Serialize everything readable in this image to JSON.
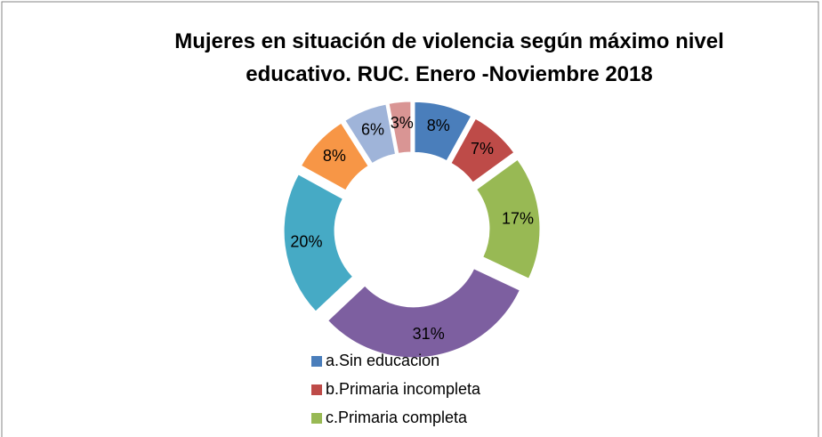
{
  "chart_data": {
    "type": "donut",
    "title": "Mujeres en situación de violencia según máximo nivel educativo. RUC. Enero -Noviembre  2018",
    "categories": [
      "a.Sin educacion",
      "b.Primaria incompleta",
      "c.Primaria completa",
      null,
      null,
      null,
      null,
      null
    ],
    "values": [
      8,
      7,
      17,
      31,
      20,
      8,
      6,
      3
    ],
    "value_labels": [
      "8%",
      "7%",
      "17%",
      "31%",
      "20%",
      "8%",
      "6%",
      "3%"
    ],
    "colors": [
      "#4a7ebb",
      "#be4b48",
      "#98b954",
      "#7d5fa0",
      "#46aac5",
      "#f79646",
      "#9fb4d9",
      "#d99594"
    ],
    "legend": "bottom"
  }
}
